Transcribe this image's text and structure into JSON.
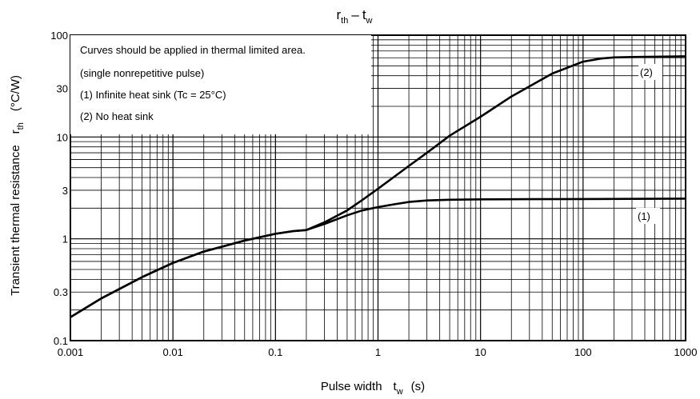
{
  "chart_data": {
    "type": "line",
    "title": {
      "main": "r",
      "main_sub": "th",
      "dash": "–",
      "second": "t",
      "second_sub": "w"
    },
    "xlabel": {
      "text": "Pulse width",
      "symbol": "t",
      "symbol_sub": "w",
      "unit": "(s)"
    },
    "ylabel": {
      "text": "Transient thermal resistance",
      "symbol": "r",
      "symbol_sub": "th",
      "unit": "(°C/W)"
    },
    "x_scale": "log",
    "y_scale": "log",
    "xlim": [
      0.001,
      1000
    ],
    "ylim": [
      0.1,
      100
    ],
    "x_ticks": [
      "0.001",
      "0.01",
      "0.1",
      "1",
      "10",
      "100",
      "1000"
    ],
    "y_ticks": [
      {
        "value": 0.1,
        "label": "0.1"
      },
      {
        "value": 0.3,
        "label": "0.3"
      },
      {
        "value": 1,
        "label": "1"
      },
      {
        "value": 3,
        "label": "3"
      },
      {
        "value": 10,
        "label": "10"
      },
      {
        "value": 30,
        "label": "30"
      },
      {
        "value": 100,
        "label": "100"
      }
    ],
    "grid": true,
    "notes": [
      "Curves should be applied in thermal limited area.",
      "(single nonrepetitive pulse)",
      "(1)  Infinite heat sink (Tc = 25°C)",
      "(2)  No heat sink"
    ],
    "series": [
      {
        "name": "(1)",
        "color": "#000000",
        "x": [
          0.001,
          0.002,
          0.005,
          0.01,
          0.02,
          0.05,
          0.1,
          0.15,
          0.2,
          0.3,
          0.5,
          0.7,
          1,
          1.5,
          2,
          3,
          5,
          10,
          30,
          100,
          300,
          1000
        ],
        "y": [
          0.17,
          0.26,
          0.42,
          0.58,
          0.75,
          0.96,
          1.12,
          1.19,
          1.22,
          1.4,
          1.7,
          1.9,
          2.05,
          2.2,
          2.3,
          2.38,
          2.42,
          2.44,
          2.45,
          2.46,
          2.47,
          2.48
        ]
      },
      {
        "name": "(2)",
        "color": "#000000",
        "x": [
          0.001,
          0.002,
          0.005,
          0.01,
          0.02,
          0.05,
          0.1,
          0.15,
          0.2,
          0.3,
          0.5,
          0.7,
          1,
          2,
          3,
          5,
          10,
          20,
          50,
          100,
          150,
          200,
          300,
          500,
          1000
        ],
        "y": [
          0.17,
          0.26,
          0.42,
          0.58,
          0.75,
          0.96,
          1.12,
          1.19,
          1.22,
          1.45,
          1.9,
          2.4,
          3.1,
          5.2,
          7.0,
          10.3,
          15.8,
          25.0,
          42.0,
          55.0,
          59.0,
          60.5,
          61.0,
          61.5,
          62.0
        ]
      }
    ]
  }
}
